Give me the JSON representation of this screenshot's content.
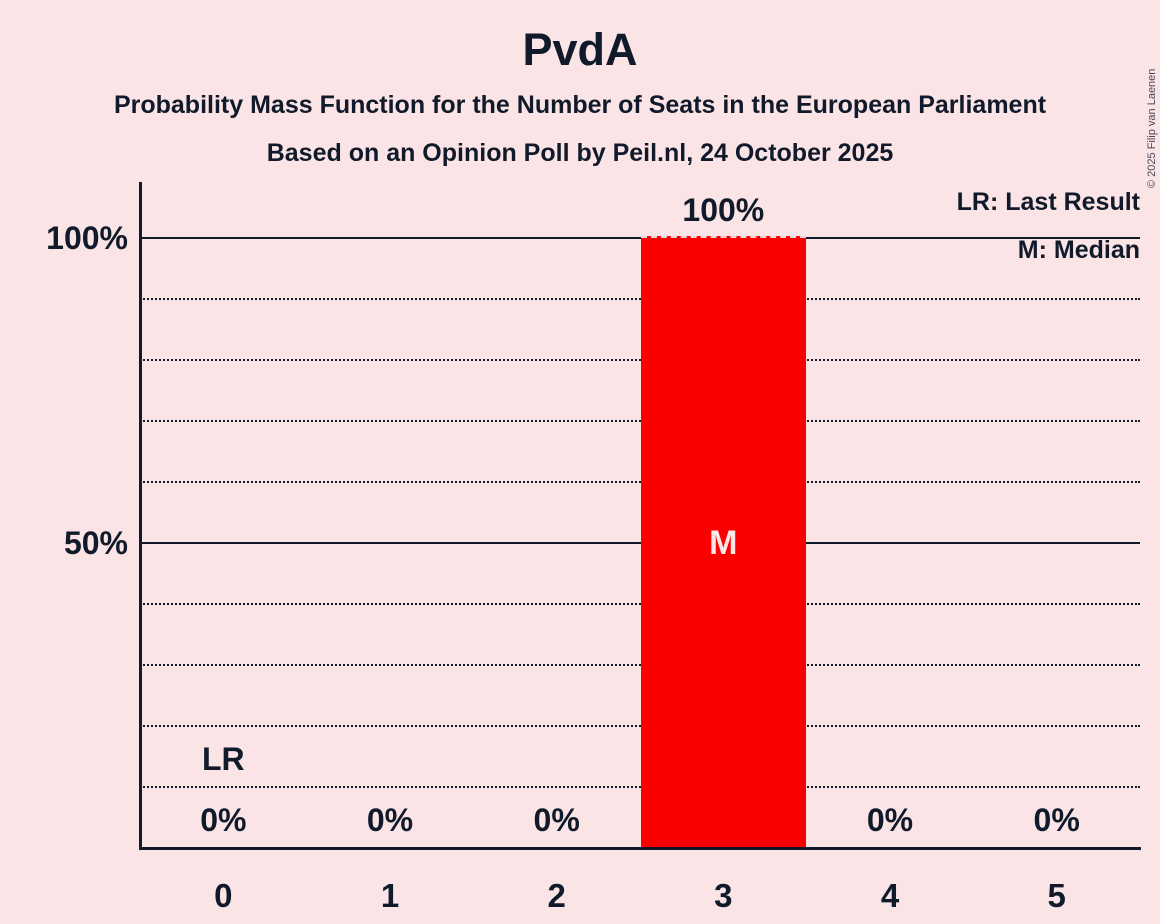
{
  "title": "PvdA",
  "subtitle1": "Probability Mass Function for the Number of Seats in the European Parliament",
  "subtitle2": "Based on an Opinion Poll by Peil.nl, 24 October 2025",
  "copyright": "© 2025 Filip van Laenen",
  "legend": {
    "lr": "LR: Last Result",
    "m": "M: Median"
  },
  "colors": {
    "background": "#FAE4E5",
    "bar": "#FC0000",
    "text": "#111A2B",
    "bar_marker_text": "#FAE8E8"
  },
  "chart_data": {
    "type": "bar",
    "title": "PvdA",
    "categories": [
      "0",
      "1",
      "2",
      "3",
      "4",
      "5"
    ],
    "values": [
      0,
      0,
      0,
      100,
      0,
      0
    ],
    "value_labels": [
      "0%",
      "0%",
      "0%",
      "100%",
      "0%",
      "0%"
    ],
    "ylim": [
      0,
      100
    ],
    "ytick_labels": [
      {
        "label": "100%",
        "value": 100
      },
      {
        "label": "50%",
        "value": 50
      }
    ],
    "grid_step_percent": 10,
    "grid_style": "dotted, solid at 50% and 100%",
    "legend_position": "top-right",
    "median_category": "3",
    "median_marker": "M",
    "last_result_category": "0",
    "last_result_marker": "LR"
  }
}
